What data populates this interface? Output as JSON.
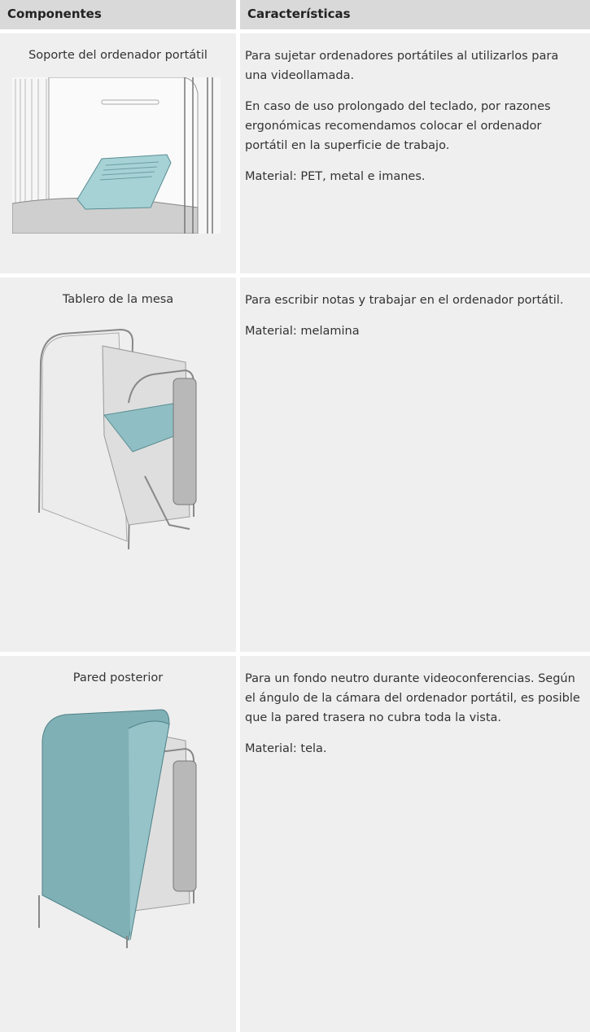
{
  "table": {
    "header": [
      "Componentes",
      "Características"
    ],
    "rows": [
      {
        "component": "Soporte del ordenador portátil",
        "description": [
          "Para sujetar ordenadores portátiles al utilizarlos para una videollamada.",
          "En caso de uso prolongado del teclado, por razones ergonómicas recomendamos colocar el ordenador portátil en la superficie de trabajo.",
          "Material: PET, metal e imanes."
        ]
      },
      {
        "component": "Tablero de la mesa",
        "description": [
          "Para escribir notas y trabajar en el ordenador portátil.",
          "Material: melamina"
        ]
      },
      {
        "component": "Pared posterior",
        "description": [
          "Para un fondo neutro durante videoconferencias. Según el ángulo de la cámara del ordenador portátil, es posible que la pared trasera no cubra toda la vista.",
          "Material: tela."
        ]
      }
    ]
  }
}
